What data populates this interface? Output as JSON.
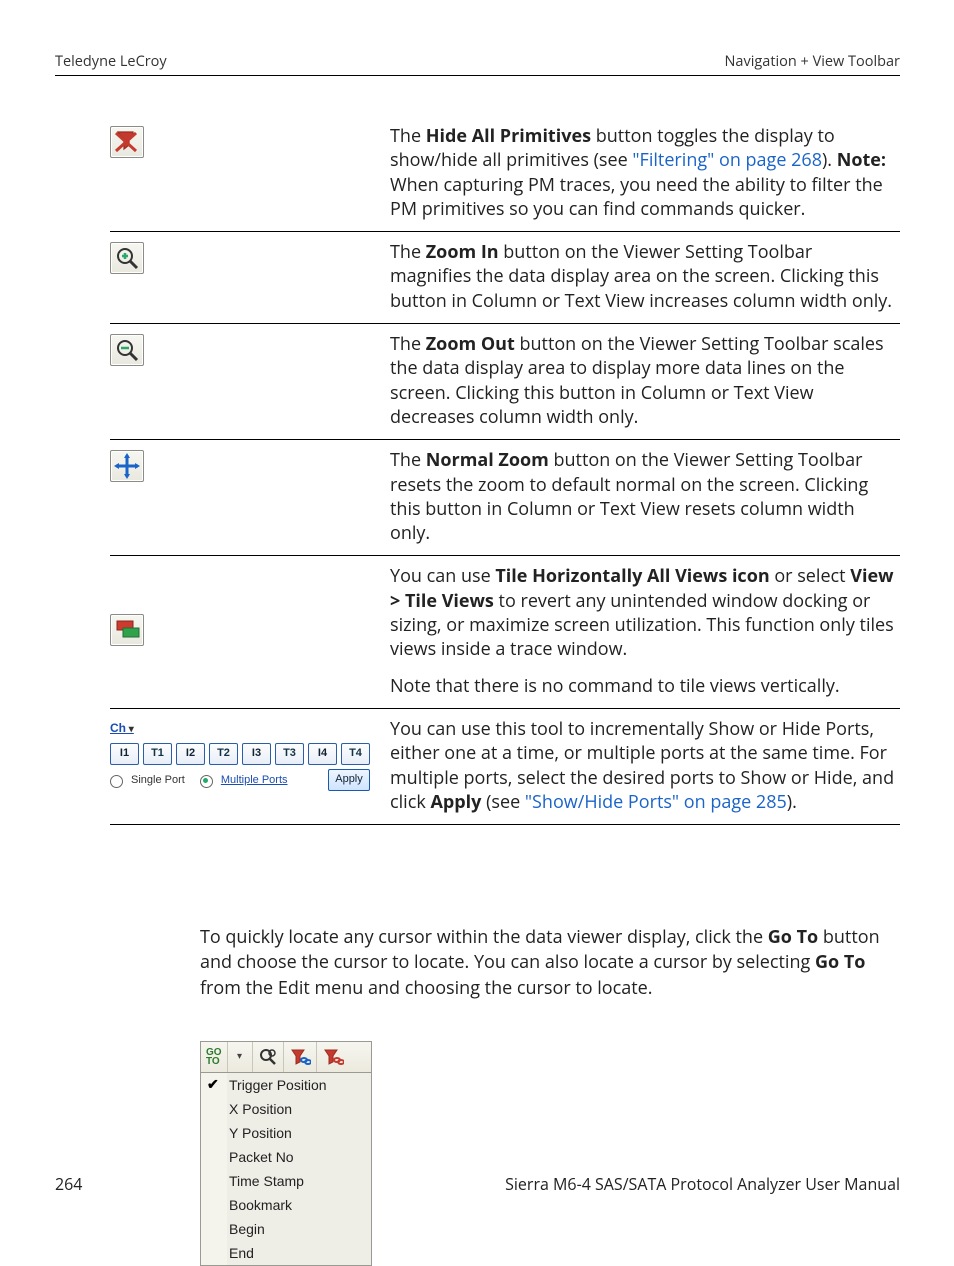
{
  "header": {
    "left": "Teledyne LeCroy",
    "right": "Navigation + View Toolbar"
  },
  "rows": {
    "hide": {
      "pre": "The ",
      "bold": "Hide All Primitives",
      "post1": " button toggles the display to show/hide all primitives (see ",
      "link": "\"Filtering\" on page 268",
      "post2": "). ",
      "note_b": "Note:",
      "post3": " When capturing PM traces, you need the ability to filter the PM primitives so you can find commands quicker."
    },
    "zoomin": {
      "pre": "The ",
      "bold": "Zoom In",
      "post": " button on the Viewer Setting Toolbar magnifies the data display area on the screen. Clicking this button in Column or Text View increases column width only."
    },
    "zoomout": {
      "pre": "The ",
      "bold": "Zoom Out",
      "post": " button on the Viewer Setting Toolbar scales the data display area to display more data lines on the screen. Clicking this button in Column or Text View decreases column width only."
    },
    "normal": {
      "pre": "The ",
      "bold": "Normal Zoom",
      "post": " button on the Viewer Setting Toolbar resets the zoom to default normal on the screen. Clicking this button in Column or Text View resets column width only."
    },
    "tile": {
      "p1a": "You can use ",
      "b1": "Tile Horizontally All Views icon",
      "p1b": " or select ",
      "b2": "View > Tile Views",
      "p1c": " to revert any unintended window docking or sizing, or maximize screen utilization. This function only tiles views inside a trace window.",
      "p2": "Note that there is no command to tile views vertically."
    },
    "ports": {
      "p1": "You can use this tool to incrementally Show or Hide Ports, either one at a time, or multiple ports at the same time. For multiple ports, select the desired ports to Show or Hide, and click ",
      "b": "Apply",
      "p2": " (see ",
      "link": "\"Show/Hide Ports\" on page 285",
      "p3": ")."
    }
  },
  "port_picker": {
    "ch": "Ch",
    "buttons": [
      "I1",
      "T1",
      "I2",
      "T2",
      "I3",
      "T3",
      "I4",
      "T4"
    ],
    "single": "Single Port",
    "multi": "Multiple Ports",
    "apply": "Apply"
  },
  "para": {
    "t1": "To quickly locate any cursor within the data viewer display, click the ",
    "b1": "Go To",
    "t2": " button and choose the cursor to locate. You can also locate a cursor by selecting ",
    "b2": "Go To",
    "t3": " from the Edit menu and choosing the cursor to locate."
  },
  "goto": {
    "go": "GO\nTO",
    "items": [
      {
        "checked": true,
        "label": "Trigger Position"
      },
      {
        "checked": false,
        "label": "X Position"
      },
      {
        "checked": false,
        "label": "Y Position"
      },
      {
        "checked": false,
        "label": "Packet No"
      },
      {
        "checked": false,
        "label": "Time Stamp"
      },
      {
        "checked": false,
        "label": "Bookmark"
      },
      {
        "checked": false,
        "label": "Begin"
      },
      {
        "checked": false,
        "label": "End"
      }
    ]
  },
  "footer": {
    "page": "264",
    "title": "Sierra M6-4 SAS/SATA Protocol Analyzer User Manual"
  }
}
